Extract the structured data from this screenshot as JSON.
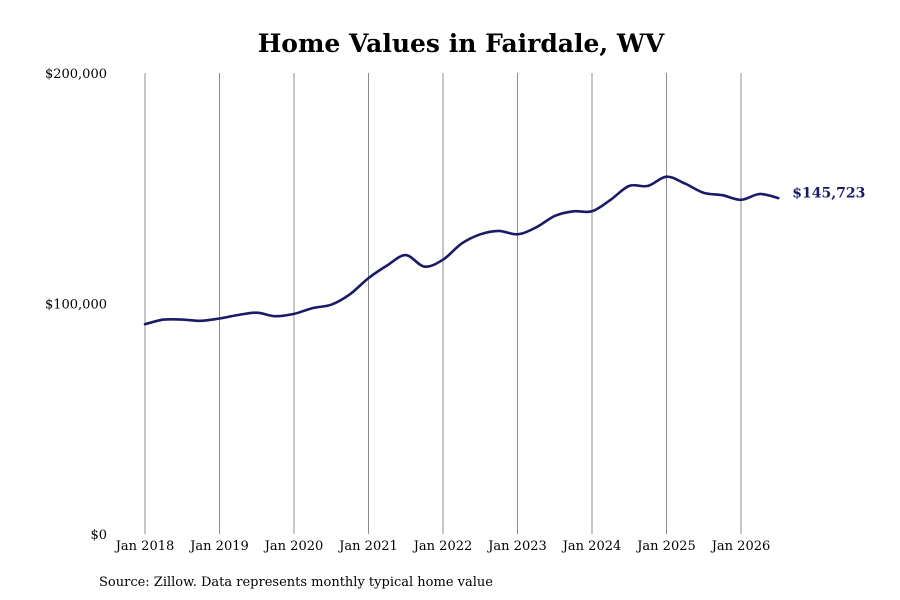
{
  "chart_data": {
    "type": "line",
    "title": "Home Values in Fairdale, WV",
    "xlabel": "",
    "ylabel": "",
    "ylim": [
      0,
      200000
    ],
    "yticks": [
      {
        "value": 0,
        "label": "$0"
      },
      {
        "value": 100000,
        "label": "$100,000"
      },
      {
        "value": 200000,
        "label": "$200,000"
      }
    ],
    "xticks": [
      {
        "value": "2018-01",
        "label": "Jan 2018"
      },
      {
        "value": "2019-01",
        "label": "Jan 2019"
      },
      {
        "value": "2020-01",
        "label": "Jan 2020"
      },
      {
        "value": "2021-01",
        "label": "Jan 2021"
      },
      {
        "value": "2022-01",
        "label": "Jan 2022"
      },
      {
        "value": "2023-01",
        "label": "Jan 2023"
      },
      {
        "value": "2024-01",
        "label": "Jan 2024"
      },
      {
        "value": "2025-01",
        "label": "Jan 2025"
      },
      {
        "value": "2026-01",
        "label": "Jan 2026"
      }
    ],
    "grid": {
      "vertical": true,
      "horizontal": false
    },
    "line_color": "#1a1a66",
    "end_label": "$145,723",
    "series": [
      {
        "x": [
          "2018-01",
          "2018-04",
          "2018-07",
          "2018-10",
          "2019-01",
          "2019-04",
          "2019-07",
          "2019-10",
          "2020-01",
          "2020-04",
          "2020-07",
          "2020-10",
          "2021-01",
          "2021-04",
          "2021-07",
          "2021-10",
          "2022-01",
          "2022-04",
          "2022-07",
          "2022-10",
          "2023-01",
          "2023-04",
          "2023-07",
          "2023-10",
          "2024-01",
          "2024-04",
          "2024-07",
          "2024-10",
          "2025-01",
          "2025-04",
          "2025-07",
          "2025-10",
          "2026-01",
          "2026-04",
          "2026-07"
        ],
        "values": [
          91000,
          93000,
          93000,
          92500,
          93500,
          95000,
          96000,
          94500,
          95500,
          98000,
          99500,
          104000,
          111000,
          116500,
          121000,
          116000,
          119000,
          126000,
          130000,
          131500,
          130000,
          133000,
          138000,
          140000,
          140000,
          145000,
          151000,
          151000,
          155000,
          152000,
          148000,
          147000,
          145000,
          147500,
          145723
        ]
      }
    ]
  },
  "source_text": "Source: Zillow. Data represents monthly typical home value"
}
